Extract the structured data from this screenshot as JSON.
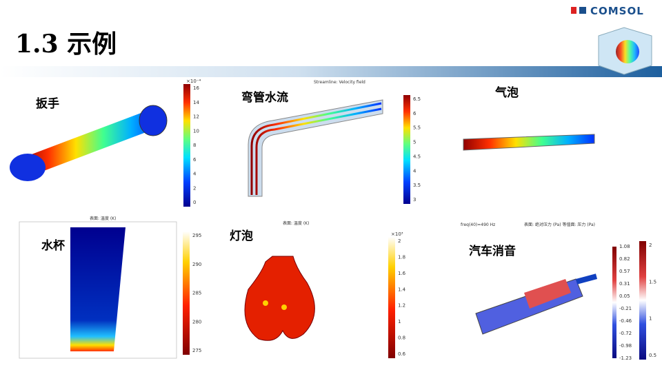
{
  "header": {
    "title": "1.3 示例",
    "brand": "COMSOL"
  },
  "panels": [
    {
      "label": "扳手",
      "colorbar_exponent": "×10⁻⁴",
      "colorbar": [
        "16",
        "14",
        "12",
        "10",
        "8",
        "6",
        "4",
        "2",
        "0"
      ]
    },
    {
      "label": "弯管水流",
      "caption": "Streamline: Velocity field",
      "colorbar": [
        "6.5",
        "6",
        "5.5",
        "5",
        "4.5",
        "4",
        "3.5",
        "3"
      ]
    },
    {
      "label": "气泡"
    },
    {
      "label": "水杯",
      "caption": "表面: 温度 (K)",
      "colorbar": [
        "295",
        "290",
        "285",
        "280",
        "275"
      ]
    },
    {
      "label": "灯泡",
      "caption": "表面: 温度 (K)",
      "colorbar_exponent": "×10³",
      "colorbar": [
        "2",
        "1.8",
        "1.6",
        "1.4",
        "1.2",
        "1",
        "0.8",
        "0.6"
      ]
    },
    {
      "label": "汽车消音",
      "caption": "freq(40)=490 Hz",
      "caption2": "表面: 绝对压力 (Pa) 等值面: 压力 (Pa)",
      "colorbar": [
        "2",
        "1.5",
        "1",
        "0.5"
      ],
      "legend": [
        "1.08",
        "0.82",
        "0.57",
        "0.31",
        "0.05",
        "-0.21",
        "-0.46",
        "-0.72",
        "-0.98",
        "-1.23"
      ]
    }
  ]
}
